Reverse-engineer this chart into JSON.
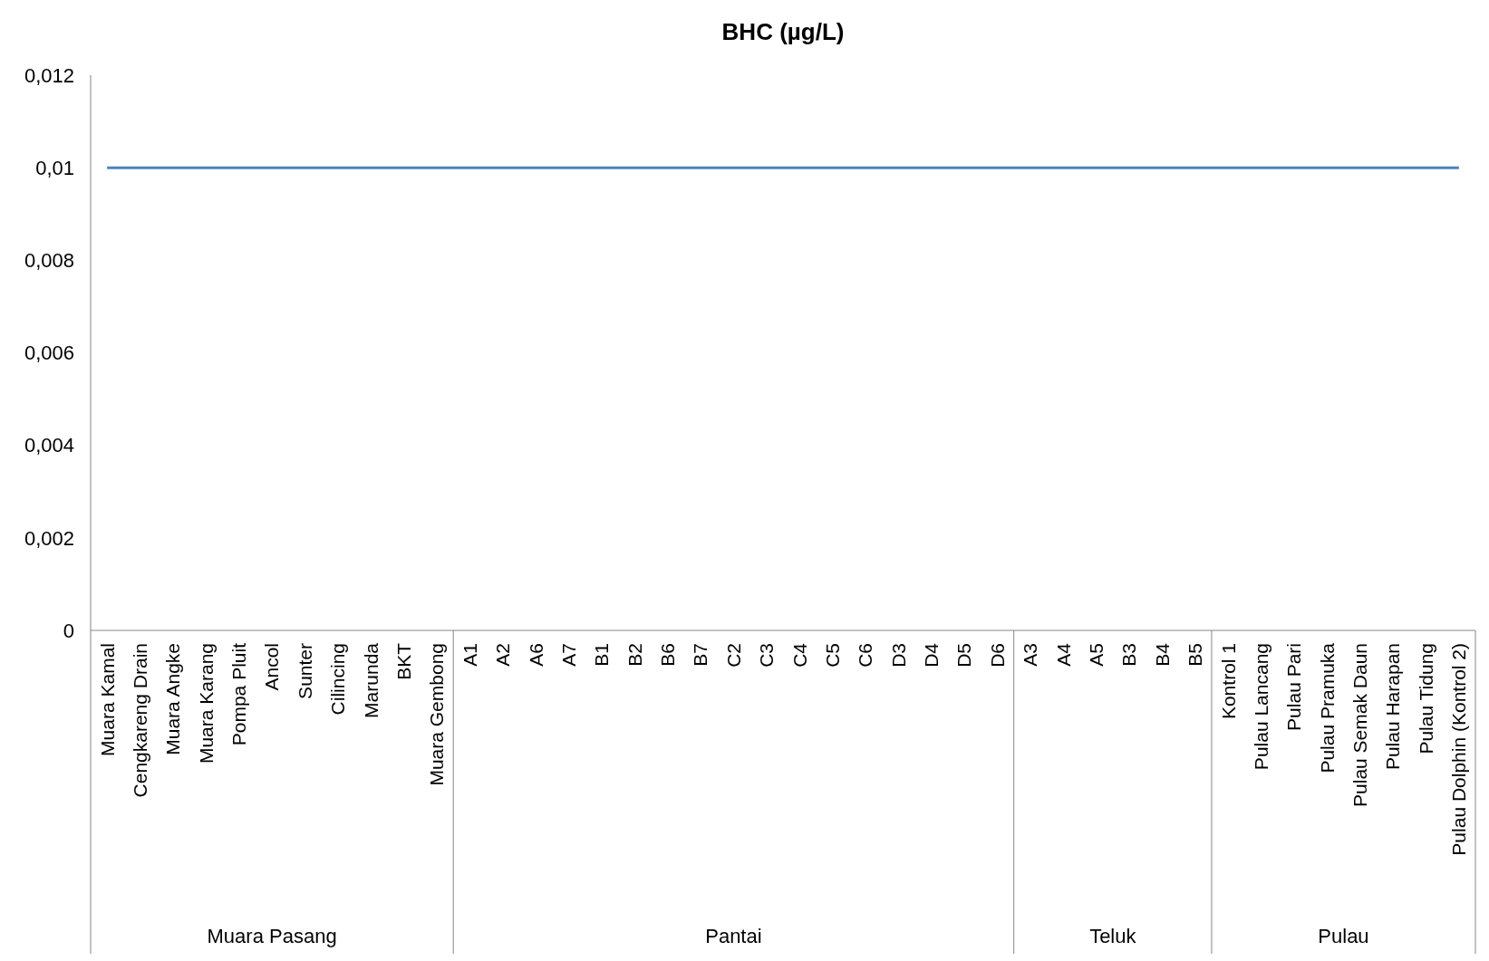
{
  "chart_data": {
    "type": "line",
    "title": "BHC (µg/L)",
    "categories": [
      "Muara Kamal",
      "Cengkareng Drain",
      "Muara Angke",
      "Muara Karang",
      "Pompa Pluit",
      "Ancol",
      "Sunter",
      "Cilincing",
      "Marunda",
      "BKT",
      "Muara Gembong",
      "A1",
      "A2",
      "A6",
      "A7",
      "B1",
      "B2",
      "B6",
      "B7",
      "C2",
      "C3",
      "C4",
      "C5",
      "C6",
      "D3",
      "D4",
      "D5",
      "D6",
      "A3",
      "A4",
      "A5",
      "B3",
      "B4",
      "B5",
      "Kontrol 1",
      "Pulau Lancang",
      "Pulau Pari",
      "Pulau Pramuka",
      "Pulau Semak Daun",
      "Pulau Harapan",
      "Pulau Tidung",
      "Pulau Dolphin (Kontrol 2)"
    ],
    "series": [
      {
        "color": "#4f81bd",
        "values": [
          0.01,
          0.01,
          0.01,
          0.01,
          0.01,
          0.01,
          0.01,
          0.01,
          0.01,
          0.01,
          0.01,
          0.01,
          0.01,
          0.01,
          0.01,
          0.01,
          0.01,
          0.01,
          0.01,
          0.01,
          0.01,
          0.01,
          0.01,
          0.01,
          0.01,
          0.01,
          0.01,
          0.01,
          0.01,
          0.01,
          0.01,
          0.01,
          0.01,
          0.01,
          0.01,
          0.01,
          0.01,
          0.01,
          0.01,
          0.01,
          0.01,
          0.01
        ]
      }
    ],
    "ylim": [
      0,
      0.012
    ],
    "yticks": [
      {
        "value": 0,
        "label": "0"
      },
      {
        "value": 0.002,
        "label": "0,002"
      },
      {
        "value": 0.004,
        "label": "0,004"
      },
      {
        "value": 0.006,
        "label": "0,006"
      },
      {
        "value": 0.008,
        "label": "0,008"
      },
      {
        "value": 0.01,
        "label": "0,01"
      },
      {
        "value": 0.012,
        "label": "0,012"
      }
    ],
    "annotations": [
      "Muara Pasang",
      "Pantai",
      "Teluk",
      "Pulau"
    ],
    "grid": false,
    "marker": "none",
    "line_style": "solid"
  }
}
